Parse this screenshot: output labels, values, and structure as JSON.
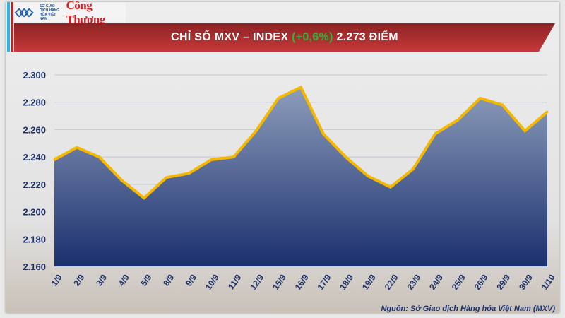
{
  "header": {
    "logo_exchange_text": "SỞ GIAO DỊCH HÀNG HÓA VIỆT NAM",
    "logo_newspaper_text": "Công Thương",
    "title_prefix": "CHỈ SỐ MXV – INDEX ",
    "title_change": "(+0,6%)",
    "title_suffix": " 2.273 ĐIỂM",
    "change_color": "#2fb33b"
  },
  "chart_data": {
    "type": "area",
    "title": "CHỈ SỐ MXV – INDEX (+0,6%) 2.273 ĐIỂM",
    "categories": [
      "1/9",
      "2/9",
      "3/9",
      "4/9",
      "5/9",
      "8/9",
      "9/9",
      "10/9",
      "11/9",
      "12/9",
      "15/9",
      "16/9",
      "17/9",
      "18/9",
      "19/9",
      "22/9",
      "23/9",
      "24/9",
      "25/9",
      "26/9",
      "29/9",
      "30/9",
      "1/10"
    ],
    "values": [
      2238,
      2247,
      2240,
      2223,
      2210,
      2225,
      2228,
      2238,
      2240,
      2259,
      2283,
      2291,
      2257,
      2240,
      2226,
      2218,
      2231,
      2257,
      2267,
      2283,
      2278,
      2259,
      2273
    ],
    "ylim": [
      2160,
      2300
    ],
    "yticks": [
      "2.160",
      "2.180",
      "2.200",
      "2.220",
      "2.240",
      "2.260",
      "2.280",
      "2.300"
    ],
    "ytick_values": [
      2160,
      2180,
      2200,
      2220,
      2240,
      2260,
      2280,
      2300
    ],
    "grid": true,
    "line_color": "#f5b800",
    "fill_top_color": "#8d9dbb",
    "fill_bottom_color": "#1b2f6e"
  },
  "footer": {
    "source": "Nguồn: Sở Giao dịch Hàng hóa Việt Nam (MXV)"
  }
}
